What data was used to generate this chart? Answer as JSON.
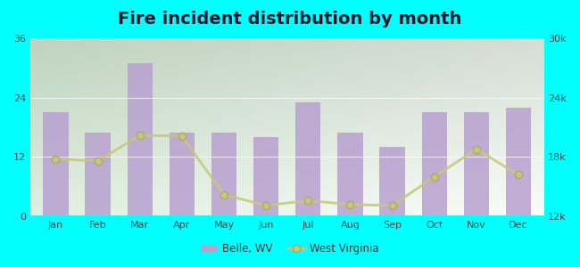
{
  "title": "Fire incident distribution by month",
  "months": [
    "Jan",
    "Feb",
    "Mar",
    "Apr",
    "May",
    "Jun",
    "Jul",
    "Aug",
    "Sep",
    "Oct",
    "Nov",
    "Dec"
  ],
  "belle_wv": [
    21,
    17,
    31,
    17,
    17,
    16,
    23,
    17,
    14,
    21,
    21,
    22
  ],
  "west_virginia": [
    17800,
    17600,
    20200,
    20100,
    14200,
    13100,
    13600,
    13200,
    13100,
    16000,
    18800,
    16200
  ],
  "bar_color": "#b8a0d0",
  "line_color": "#c8c87a",
  "line_marker_color": "#c8c878",
  "outer_bg": "#00ffff",
  "plot_bg_left": "#c8e8c0",
  "plot_bg_right": "#f0f8f0",
  "ylim_left": [
    0,
    36
  ],
  "ylim_right": [
    12000,
    30000
  ],
  "yticks_left": [
    0,
    12,
    24,
    36
  ],
  "yticks_right": [
    12000,
    18000,
    24000,
    30000
  ],
  "ytick_labels_right": [
    "12k",
    "18k",
    "24k",
    "30k"
  ],
  "title_fontsize": 14,
  "tick_fontsize": 8,
  "legend_belle": "Belle, WV",
  "legend_wv": "West Virginia",
  "title_color": "#1a1a2e"
}
